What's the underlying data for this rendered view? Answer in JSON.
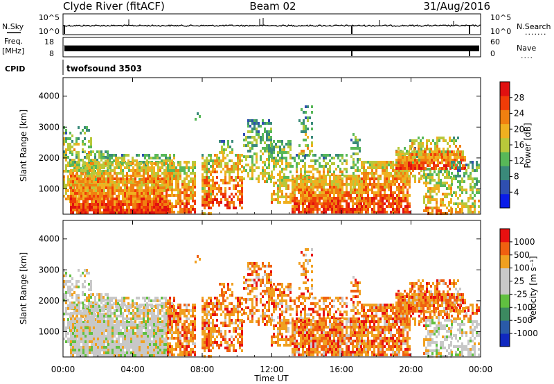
{
  "header": {
    "station": "Clyde River (fitACF)",
    "beam": "Beam 02",
    "date": "31/Aug/2016"
  },
  "params": {
    "nsky_label": "N.Sky",
    "nsearch_label": "N.Search",
    "freq_label": "Freq.",
    "freq_unit": "[MHz]",
    "nave_label": "Nave",
    "cpid_label": "CPID",
    "cpid_value": "twofsound 3503",
    "noise_ticks_left": [
      "10^5",
      "10^0"
    ],
    "noise_ticks_right": [
      "10^5",
      "10^0"
    ],
    "freq_ticks": [
      "18",
      "8"
    ],
    "nave_ticks": [
      "60",
      "0"
    ]
  },
  "chart_data": [
    {
      "type": "heatmap",
      "name": "power",
      "ylabel": "Slant Range [km]",
      "x_ticks": [
        "00:00",
        "04:00",
        "08:00",
        "12:00",
        "16:00",
        "20:00",
        "00:00"
      ],
      "y_ticks": [
        1000,
        2000,
        3000,
        4000
      ],
      "ylim": [
        180,
        4600
      ],
      "colorbar_label": "Power [dB]",
      "colorbar_ticks": [
        "28",
        "24",
        "20",
        "16",
        "12",
        "8",
        "4"
      ],
      "colors": [
        "#0a1ce8",
        "#2f4fb0",
        "#3a8a7a",
        "#58b858",
        "#b8c83a",
        "#f0b020",
        "#f08010",
        "#f03c08",
        "#e01010"
      ]
    },
    {
      "type": "heatmap",
      "name": "velocity",
      "ylabel": "Slant Range [km]",
      "xlabel": "Time UT",
      "x_ticks": [
        "00:00",
        "04:00",
        "08:00",
        "12:00",
        "16:00",
        "20:00",
        "00:00"
      ],
      "y_ticks": [
        1000,
        2000,
        3000,
        4000
      ],
      "ylim": [
        180,
        4600
      ],
      "colorbar_label": "Velocity [m s⁻¹]",
      "colorbar_ticks": [
        "1000",
        "500",
        "100",
        "25",
        "-25",
        "-100",
        "-500",
        "-1000"
      ],
      "colors": [
        "#1028c0",
        "#2a5aa8",
        "#3c8a60",
        "#60c040",
        "#c8c8c8",
        "#c8c8c8",
        "#f0a020",
        "#f06010",
        "#e81010"
      ]
    }
  ]
}
